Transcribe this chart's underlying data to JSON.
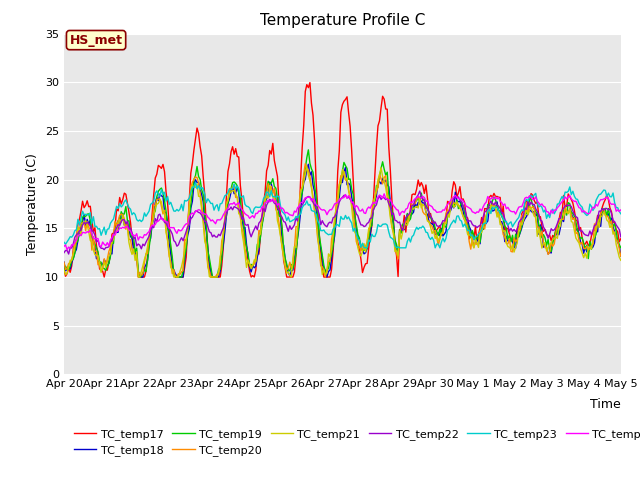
{
  "title": "Temperature Profile C",
  "xlabel": "Time",
  "ylabel": "Temperature (C)",
  "ylim": [
    0,
    35
  ],
  "yticks": [
    0,
    5,
    10,
    15,
    20,
    25,
    30,
    35
  ],
  "annotation_text": "HS_met",
  "annotation_color": "#8B0000",
  "annotation_bg": "#FFFFCC",
  "plot_bg": "#E8E8E8",
  "series_colors": {
    "TC_temp17": "#FF0000",
    "TC_temp18": "#0000CC",
    "TC_temp19": "#00CC00",
    "TC_temp20": "#FF8C00",
    "TC_temp21": "#CCCC00",
    "TC_temp22": "#9900CC",
    "TC_temp23": "#00CCCC",
    "TC_temp24": "#FF00FF"
  },
  "xtick_labels": [
    "Apr 20",
    "Apr 21",
    "Apr 22",
    "Apr 23",
    "Apr 24",
    "Apr 25",
    "Apr 26",
    "Apr 27",
    "Apr 28",
    "Apr 29",
    "Apr 30",
    "May 1",
    "May 2",
    "May 3",
    "May 4",
    "May 5"
  ],
  "linewidth": 1.0,
  "title_fontsize": 11,
  "axis_fontsize": 9,
  "tick_fontsize": 8
}
